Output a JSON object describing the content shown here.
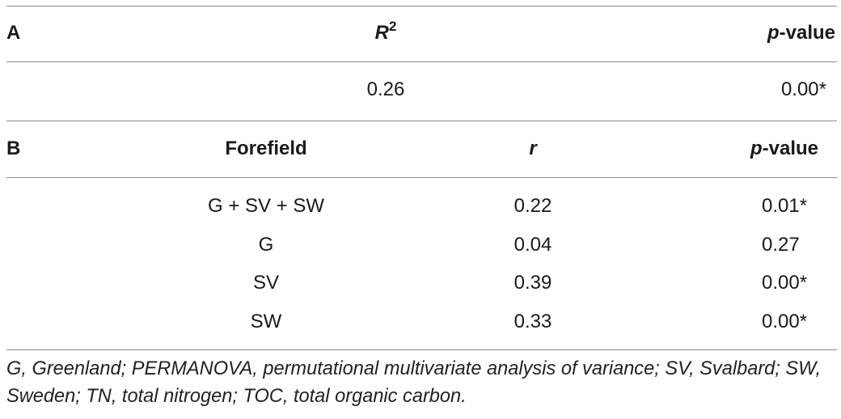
{
  "panel_a": {
    "label": "A",
    "headers": {
      "r2_symbol": "R",
      "r2_superscript": "2",
      "p_symbol": "p",
      "p_suffix": "-value"
    },
    "row": {
      "r2": "0.26",
      "p_value": "0.00*"
    }
  },
  "panel_b": {
    "label": "B",
    "headers": {
      "forefield": "Forefield",
      "r_symbol": "r",
      "p_symbol": "p",
      "p_suffix": "-value"
    },
    "rows": [
      {
        "forefield": "G + SV + SW",
        "r": "0.22",
        "p_value": "0.01*"
      },
      {
        "forefield": "G",
        "r": "0.04",
        "p_value": "0.27"
      },
      {
        "forefield": "SV",
        "r": "0.39",
        "p_value": "0.00*"
      },
      {
        "forefield": "SW",
        "r": "0.33",
        "p_value": "0.00*"
      }
    ]
  },
  "footnote": "G, Greenland; PERMANOVA, permutational multivariate analysis of variance; SV, Svalbard; SW, Sweden; TN, total nitrogen; TOC, total organic carbon."
}
